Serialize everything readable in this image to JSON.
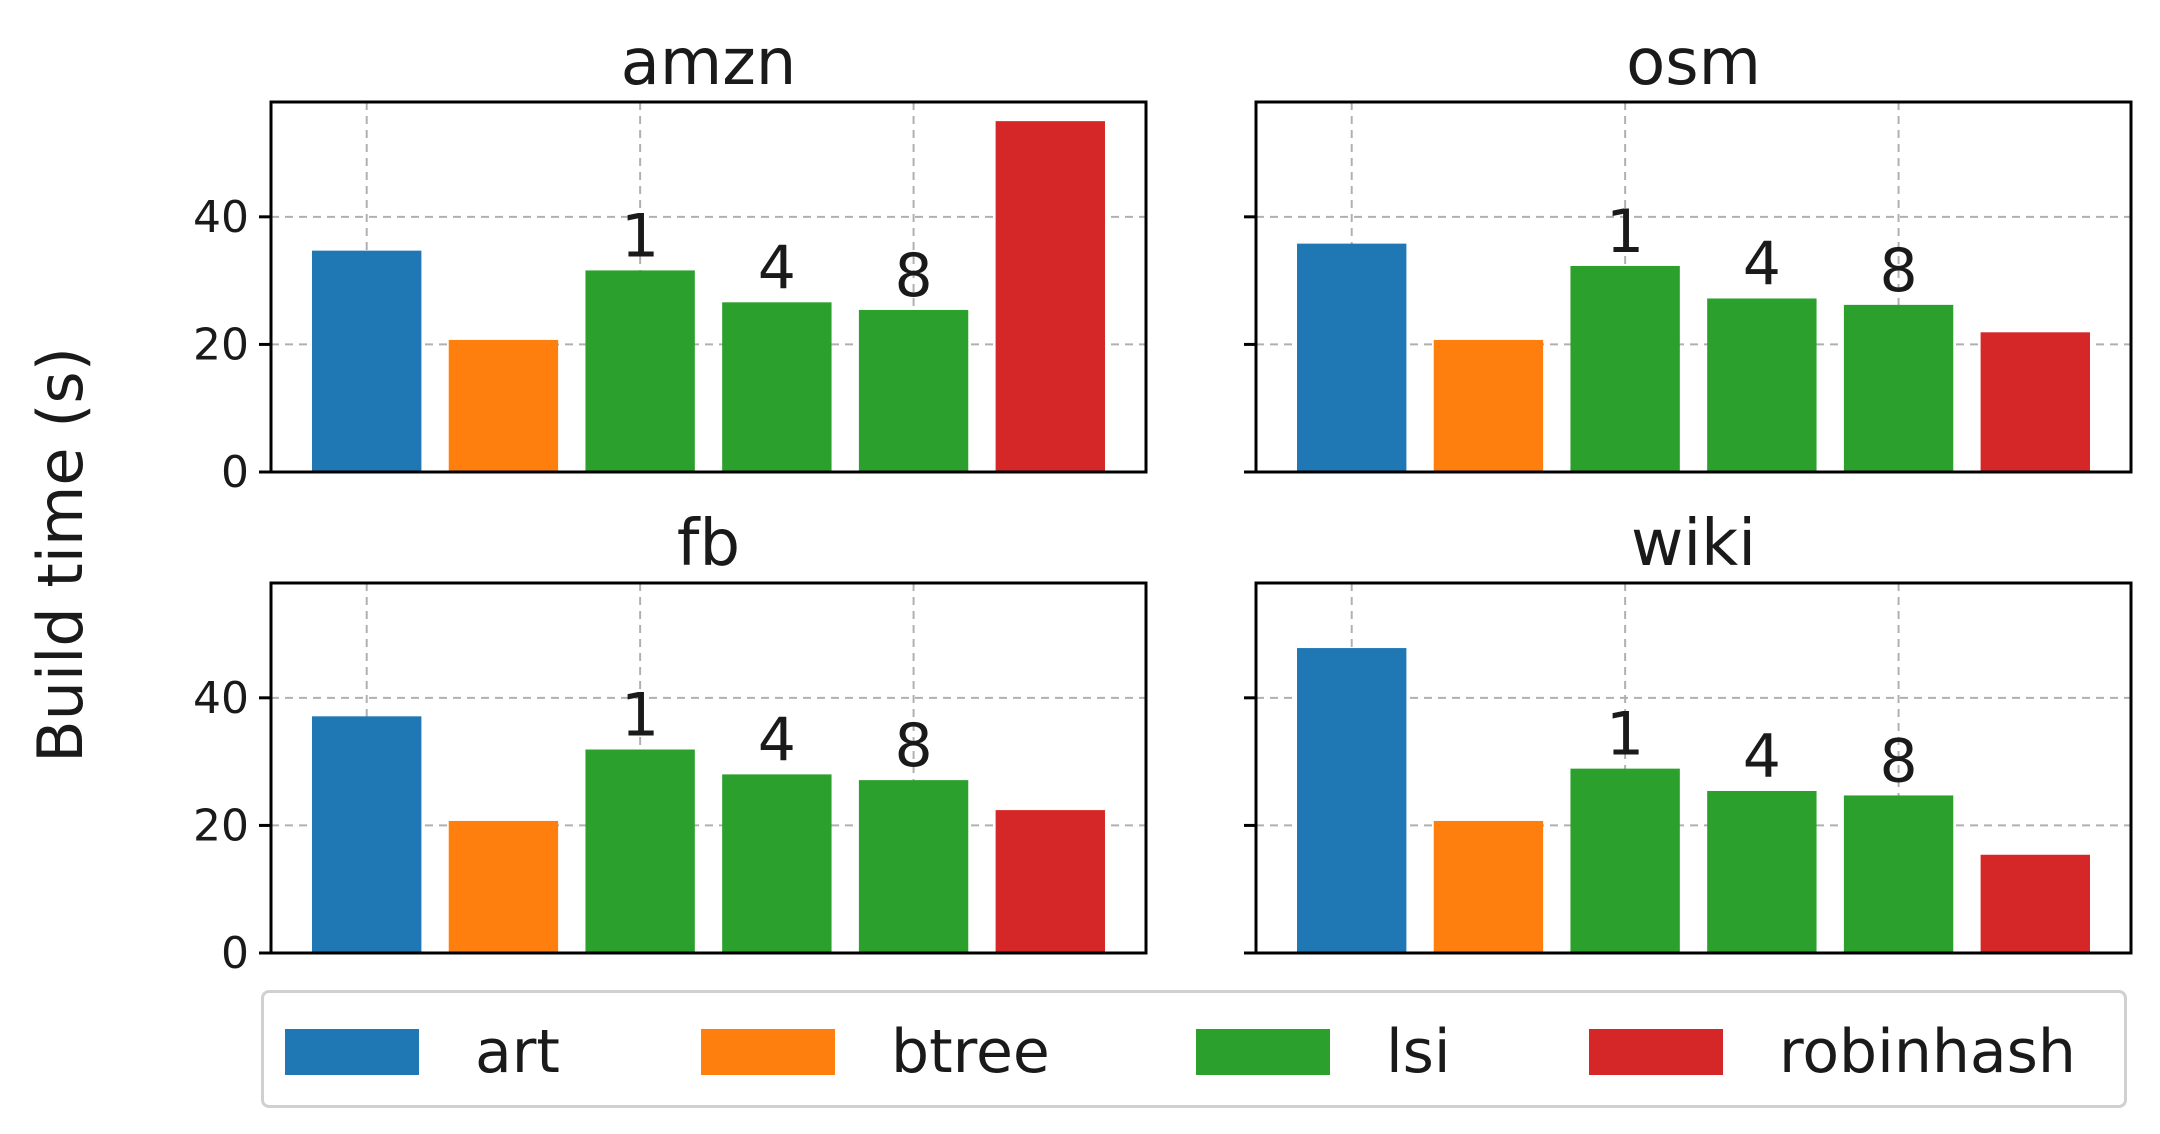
{
  "chart_data": {
    "type": "bar",
    "ylabel": "Build time (s)",
    "ylim": [
      0,
      58
    ],
    "yticks": [
      0,
      20,
      40
    ],
    "grid": true,
    "legend_position": "bottom",
    "categories": [
      "art",
      "btree",
      "lsi",
      "lsi",
      "lsi",
      "robinhash"
    ],
    "bar_colors": [
      "#1f77b4",
      "#ff7f0e",
      "#2ca02c",
      "#2ca02c",
      "#2ca02c",
      "#d62728"
    ],
    "bar_annotations": [
      "",
      "",
      "1",
      "4",
      "8",
      ""
    ],
    "panels": [
      {
        "title": "amzn",
        "values": [
          34.7,
          20.7,
          31.6,
          26.6,
          25.4,
          55.0
        ]
      },
      {
        "title": "osm",
        "values": [
          35.8,
          20.7,
          32.3,
          27.2,
          26.2,
          21.9
        ]
      },
      {
        "title": "fb",
        "values": [
          37.1,
          20.7,
          31.9,
          28.0,
          27.1,
          22.4
        ]
      },
      {
        "title": "wiki",
        "values": [
          47.8,
          20.7,
          28.9,
          25.4,
          24.7,
          15.4
        ]
      }
    ],
    "legend": [
      {
        "label": "art",
        "color": "#1f77b4"
      },
      {
        "label": "btree",
        "color": "#ff7f0e"
      },
      {
        "label": "lsi",
        "color": "#2ca02c"
      },
      {
        "label": "robinhash",
        "color": "#d62728"
      }
    ]
  }
}
